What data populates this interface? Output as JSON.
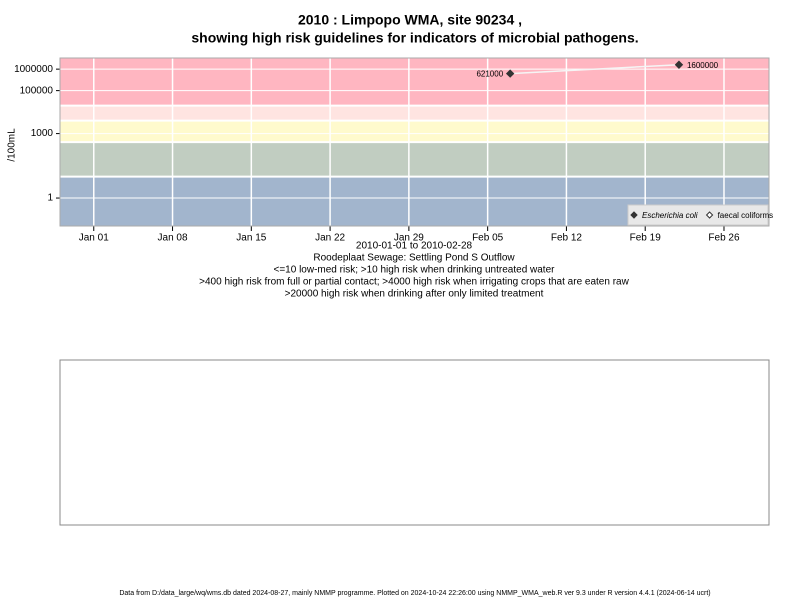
{
  "chart_data": {
    "type": "line",
    "title": "2010 : Limpopo WMA, site 90234 ,",
    "subtitle": "showing high risk guidelines for indicators of microbial pathogens.",
    "y_label": "/100mL",
    "log_y": true,
    "grid": true,
    "legend_position": "bottom-right",
    "x": [
      "2010-02-07",
      "2010-02-22"
    ],
    "xlim": [
      "2009-12-29",
      "2010-03-02"
    ],
    "xticks": [
      {
        "value": "2010-01-01",
        "label": "Jan 01"
      },
      {
        "value": "2010-01-08",
        "label": "Jan 08"
      },
      {
        "value": "2010-01-15",
        "label": "Jan 15"
      },
      {
        "value": "2010-01-22",
        "label": "Jan 22"
      },
      {
        "value": "2010-01-29",
        "label": "Jan 29"
      },
      {
        "value": "2010-02-05",
        "label": "Feb 05"
      },
      {
        "value": "2010-02-12",
        "label": "Feb 12"
      },
      {
        "value": "2010-02-19",
        "label": "Feb 19"
      },
      {
        "value": "2010-02-26",
        "label": "Feb 26"
      }
    ],
    "ylim": [
      0.05,
      3300000
    ],
    "yticks": [
      1,
      1000,
      100000,
      1000000
    ],
    "thresholds": [
      10,
      400,
      4000,
      20000
    ],
    "band_colors": [
      "#a2b5cd",
      "#c1cdc1",
      "#fffacd",
      "#ffe4e1",
      "#ffb6c1"
    ],
    "series": [
      {
        "name": "Escherichia coli",
        "color": "#333333",
        "marker": "filled",
        "values": [
          621000,
          1600000
        ]
      },
      {
        "name": "faecal coliforms",
        "color": "#333333",
        "marker": "open",
        "values": [
          null,
          null
        ]
      }
    ],
    "captions": [
      "2010-01-01 to 2010-02-28",
      "Roodeplaat Sewage: Settling Pond S Outflow",
      "<=10 low-med risk; >10 high risk when drinking untreated water",
      ">400 high risk from full or partial contact; >4000 high risk when irrigating crops that are eaten raw",
      ">20000 high risk when drinking after only limited treatment"
    ],
    "footer": "Data from D:/data_large/wq/wms.db dated 2024-08-27, mainly NMMP programme. Plotted on 2024-10-24 22:26:00 using NMMP_WMA_web.R ver 9.3 under R version 4.4.1 (2024-06-14 ucrt)"
  }
}
